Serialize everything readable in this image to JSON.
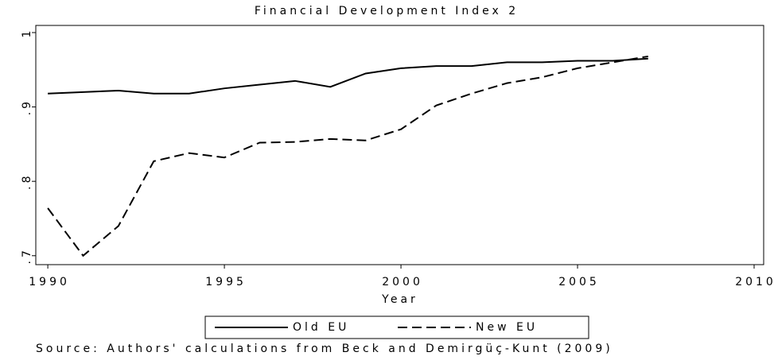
{
  "chart_data": {
    "type": "line",
    "title": "Financial Development Index 2",
    "x_label": "Year",
    "source": "Source: Authors' calculations from Beck and Demirgüç-Kunt (2009)",
    "x": [
      1990,
      1991,
      1992,
      1993,
      1994,
      1995,
      1996,
      1997,
      1998,
      1999,
      2000,
      2001,
      2002,
      2003,
      2004,
      2005,
      2006,
      2007
    ],
    "series": [
      {
        "name": "Old EU",
        "color": "#000000",
        "line_style": "solid",
        "values": [
          0.918,
          0.92,
          0.922,
          0.918,
          0.918,
          0.925,
          0.93,
          0.935,
          0.927,
          0.945,
          0.952,
          0.955,
          0.955,
          0.96,
          0.96,
          0.962,
          0.962,
          0.965
        ]
      },
      {
        "name": "New EU",
        "color": "#000000",
        "line_style": "dashed",
        "values": [
          0.764,
          0.7,
          0.74,
          0.827,
          0.838,
          0.832,
          0.852,
          0.853,
          0.857,
          0.855,
          0.87,
          0.902,
          0.918,
          0.932,
          0.94,
          0.952,
          0.96,
          0.968
        ]
      }
    ],
    "xlim": [
      1989.66,
      2010.27
    ],
    "ylim": [
      0.688,
      1.0096
    ],
    "xticks": [
      1990,
      1995,
      2000,
      2005,
      2010
    ],
    "yticks": [
      {
        "value": 0.7,
        "label": ".7"
      },
      {
        "value": 0.8,
        "label": ".8"
      },
      {
        "value": 0.9,
        "label": ".9"
      },
      1
    ],
    "grid": false,
    "legend": "bottom"
  }
}
